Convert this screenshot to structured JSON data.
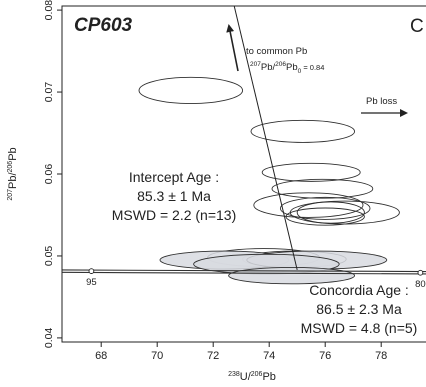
{
  "chart_data": {
    "type": "scatter",
    "plot_type": "concordia (Tera-Wasserburg) diagram with 2-sigma error ellipses",
    "sample_label": "CP603",
    "corner_label": "C",
    "xlabel": {
      "sup1": "238",
      "base1": "U/",
      "sup2": "206",
      "base2": "Pb"
    },
    "ylabel": {
      "sup1": "207",
      "base1": "Pb/",
      "sup2": "206",
      "base2": "Pb"
    },
    "xlim": [
      66.6,
      79.6
    ],
    "ylim": [
      0.0395,
      0.0805
    ],
    "x_ticks": [
      {
        "value": 68,
        "label": "68"
      },
      {
        "value": 70,
        "label": "70"
      },
      {
        "value": 72,
        "label": "72"
      },
      {
        "value": 74,
        "label": "74"
      },
      {
        "value": 76,
        "label": "76"
      },
      {
        "value": 78,
        "label": "78"
      }
    ],
    "y_ticks": [
      {
        "value": 0.04,
        "label": "0.04"
      },
      {
        "value": 0.05,
        "label": "0.05"
      },
      {
        "value": 0.06,
        "label": "0.06"
      },
      {
        "value": 0.07,
        "label": "0.07"
      },
      {
        "value": 0.08,
        "label": "0.08"
      }
    ],
    "concordia": {
      "color": "#333333",
      "points": [
        [
          67.65,
          0.04815
        ],
        [
          79.6,
          0.04795
        ]
      ],
      "age_markers": [
        {
          "x": 67.65,
          "y": 0.04815,
          "label": "95"
        },
        {
          "x": 79.4,
          "y": 0.04795,
          "label": "80"
        }
      ]
    },
    "discordia_line": {
      "points": [
        [
          72.75,
          0.0805
        ],
        [
          75.0,
          0.0483
        ]
      ]
    },
    "open_ellipses": [
      {
        "x": 71.2,
        "y": 0.0702,
        "rx": 1.85,
        "ry": 0.0016
      },
      {
        "x": 75.2,
        "y": 0.0652,
        "rx": 1.85,
        "ry": 0.00135
      },
      {
        "x": 75.5,
        "y": 0.0602,
        "rx": 1.75,
        "ry": 0.0011
      },
      {
        "x": 75.9,
        "y": 0.0582,
        "rx": 1.8,
        "ry": 0.00115
      },
      {
        "x": 75.4,
        "y": 0.0562,
        "rx": 1.95,
        "ry": 0.0015
      },
      {
        "x": 76.0,
        "y": 0.0558,
        "rx": 1.6,
        "ry": 0.00135
      },
      {
        "x": 76.7,
        "y": 0.0553,
        "rx": 1.95,
        "ry": 0.0014
      },
      {
        "x": 76.2,
        "y": 0.0553,
        "rx": 1.2,
        "ry": 0.0013
      },
      {
        "x": 76.0,
        "y": 0.0548,
        "rx": 1.4,
        "ry": 0.00105
      },
      {
        "x": 74.9,
        "y": 0.0496,
        "rx": 1.85,
        "ry": 0.001
      },
      {
        "x": 73.8,
        "y": 0.0498,
        "rx": 2.0,
        "ry": 0.0011
      }
    ],
    "filled_ellipses": [
      {
        "x": 72.4,
        "y": 0.0495,
        "rx": 2.3,
        "ry": 0.0011
      },
      {
        "x": 75.7,
        "y": 0.0495,
        "rx": 2.5,
        "ry": 0.0011
      },
      {
        "x": 73.9,
        "y": 0.049,
        "rx": 2.6,
        "ry": 0.0012
      },
      {
        "x": 74.8,
        "y": 0.0476,
        "rx": 2.25,
        "ry": 0.001
      }
    ],
    "fill_color": "#d8dbe0",
    "stroke_color": "#2f2f2f",
    "annotations": {
      "common_pb_1": "to common Pb",
      "common_pb_2": {
        "sup1": "207",
        "base1": "Pb/",
        "sup2": "206",
        "base2": "Pb",
        "sub": "0",
        "tail": " = 0.84"
      },
      "pb_loss": "Pb loss",
      "intercept_title": "Intercept Age :",
      "intercept_value": "85.3 ± 1 Ma",
      "intercept_mswd": "MSWD = 2.2 (n=13)",
      "concordia_title": "Concordia Age :",
      "concordia_value": "86.5 ± 2.3 Ma",
      "concordia_mswd": "MSWD = 4.8 (n=5)"
    }
  }
}
